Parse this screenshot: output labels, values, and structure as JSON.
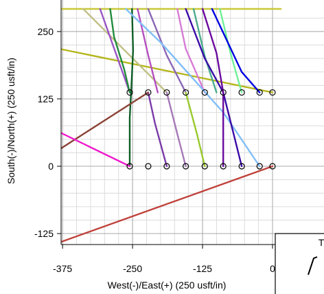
{
  "chart_data": {
    "type": "line",
    "title": "",
    "xlabel": "West(-)/East(+) (250 usft/in)",
    "ylabel": "South(-)/North(+) (250 usft/in)",
    "xlim": [
      -390,
      15
    ],
    "ylim": [
      -145,
      290
    ],
    "grid": true,
    "x_ticks": [
      -375,
      -250,
      -125,
      0
    ],
    "x_tick_labels": [
      "-375",
      "-250",
      "-125",
      "0"
    ],
    "y_ticks": [
      250,
      125,
      0,
      -125
    ],
    "y_tick_labels": [
      "250",
      "125",
      "0",
      "-125"
    ],
    "minor_step": 25,
    "legend_box_text": "T",
    "markers": {
      "row_y": [
        0,
        137
      ],
      "x": [
        -255,
        -222,
        -189,
        -155,
        -121,
        -88,
        -55,
        -23,
        0
      ]
    },
    "series": [
      {
        "color": "#c8c83a",
        "points": [
          [
            -390,
            292
          ],
          [
            15,
            292
          ]
        ]
      },
      {
        "color": "#b5b51c",
        "points": [
          [
            -390,
            220
          ],
          [
            0,
            137
          ]
        ]
      },
      {
        "color": "#c0bf84",
        "points": [
          [
            -338,
            292
          ],
          [
            -189,
            137
          ]
        ]
      },
      {
        "color": "#9954c4",
        "points": [
          [
            -308,
            292
          ],
          [
            -255,
            137
          ]
        ]
      },
      {
        "color": "#228b3c",
        "points": [
          [
            -290,
            292
          ],
          [
            -283,
            240
          ],
          [
            -265,
            180
          ],
          [
            -255,
            137
          ]
        ]
      },
      {
        "color": "#0e5e27",
        "points": [
          [
            -251,
            292
          ],
          [
            -249,
            215
          ],
          [
            -252,
            150
          ],
          [
            -255,
            90
          ],
          [
            -255,
            0
          ]
        ]
      },
      {
        "color": "#b54ec0",
        "points": [
          [
            -241,
            292
          ],
          [
            -222,
            206
          ],
          [
            -205,
            137
          ]
        ]
      },
      {
        "color": "#8b67b6",
        "points": [
          [
            -222,
            292
          ],
          [
            -189,
            206
          ],
          [
            -155,
            137
          ]
        ]
      },
      {
        "color": "#7b3aa8",
        "points": [
          [
            -222,
            137
          ],
          [
            -210,
            80
          ],
          [
            -189,
            0
          ]
        ]
      },
      {
        "color": "#a678b8",
        "points": [
          [
            -189,
            137
          ],
          [
            -170,
            60
          ],
          [
            -155,
            0
          ]
        ]
      },
      {
        "color": "#d77bd5",
        "points": [
          [
            -170,
            292
          ],
          [
            -155,
            218
          ],
          [
            -121,
            137
          ]
        ]
      },
      {
        "color": "#7fbef7",
        "points": [
          [
            -262,
            292
          ],
          [
            -200,
            230
          ],
          [
            -88,
            100
          ],
          [
            -23,
            0
          ]
        ]
      },
      {
        "color": "#4aab8c",
        "points": [
          [
            -141,
            292
          ],
          [
            -121,
            204
          ],
          [
            -100,
            137
          ]
        ]
      },
      {
        "color": "#99c92c",
        "points": [
          [
            -155,
            137
          ],
          [
            -135,
            60
          ],
          [
            -121,
            0
          ]
        ]
      },
      {
        "color": "#3a0aa8",
        "points": [
          [
            -155,
            292
          ],
          [
            -121,
            200
          ],
          [
            -88,
            137
          ],
          [
            -55,
            0
          ]
        ]
      },
      {
        "color": "#6a0a9e",
        "points": [
          [
            -125,
            292
          ],
          [
            -100,
            210
          ],
          [
            -88,
            137
          ],
          [
            -88,
            0
          ]
        ]
      },
      {
        "color": "#6ff099",
        "points": [
          [
            -94,
            292
          ],
          [
            -75,
            210
          ],
          [
            -55,
            137
          ]
        ]
      },
      {
        "color": "#0000e0",
        "points": [
          [
            -108,
            292
          ],
          [
            -55,
            175
          ],
          [
            -23,
            137
          ]
        ]
      },
      {
        "color": "#8b4236",
        "points": [
          [
            -390,
            25
          ],
          [
            -222,
            137
          ]
        ]
      },
      {
        "color": "#ee1ccc",
        "points": [
          [
            -390,
            68
          ],
          [
            -255,
            0
          ]
        ]
      },
      {
        "color": "#c0413a",
        "points": [
          [
            -390,
            -145
          ],
          [
            0,
            0
          ]
        ]
      }
    ]
  }
}
